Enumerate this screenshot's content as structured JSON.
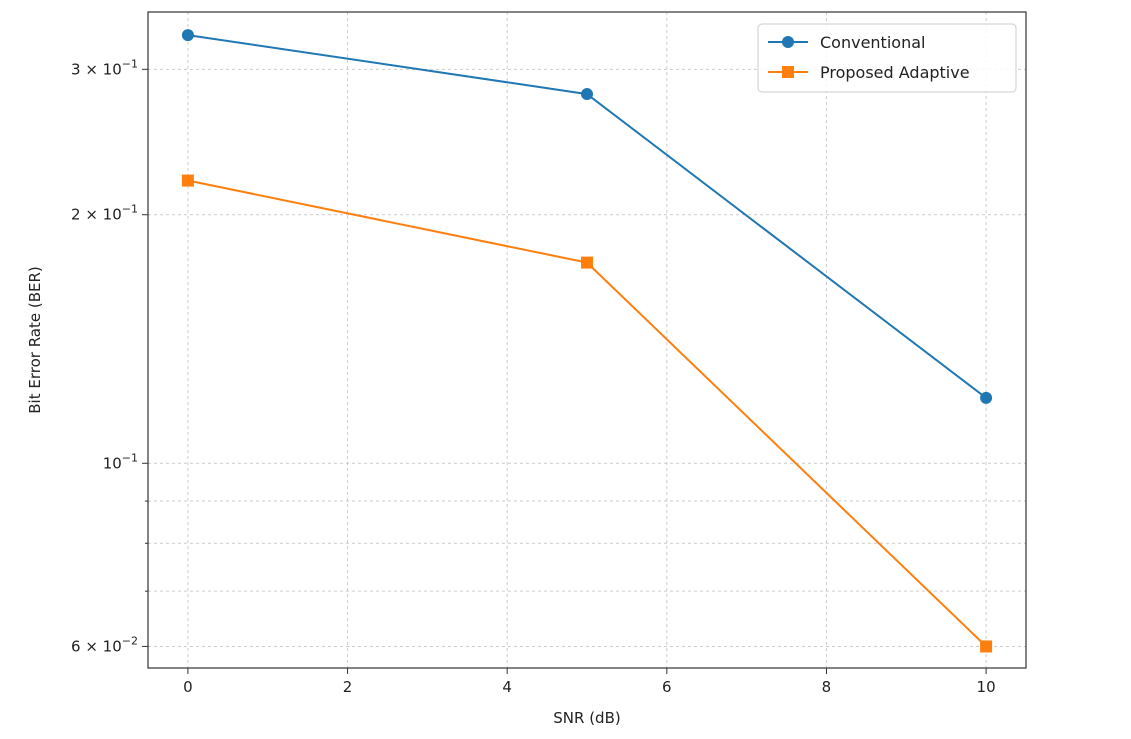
{
  "chart_data": {
    "type": "line",
    "title": "",
    "xlabel": "SNR (dB)",
    "ylabel": "Bit Error Rate (BER)",
    "xlim": [
      -0.5,
      10.5
    ],
    "ylim": [
      0.0565,
      0.352
    ],
    "yscale": "log",
    "grid": true,
    "legend_position": "top-right",
    "x": [
      0,
      5,
      10
    ],
    "series": [
      {
        "name": "Conventional",
        "values": [
          0.33,
          0.28,
          0.12
        ],
        "color": "#1f77b4",
        "marker": "circle"
      },
      {
        "name": "Proposed Adaptive",
        "values": [
          0.22,
          0.175,
          0.06
        ],
        "color": "#ff7f0e",
        "marker": "square"
      }
    ],
    "x_ticks": [
      {
        "value": 0,
        "label": "0"
      },
      {
        "value": 2,
        "label": "2"
      },
      {
        "value": 4,
        "label": "4"
      },
      {
        "value": 6,
        "label": "6"
      },
      {
        "value": 8,
        "label": "8"
      },
      {
        "value": 10,
        "label": "10"
      }
    ],
    "y_major_ticks": [
      {
        "value": 0.3,
        "mantissa": "3",
        "exponent": "−1"
      },
      {
        "value": 0.2,
        "mantissa": "2",
        "exponent": "−1"
      },
      {
        "value": 0.1,
        "mantissa": "",
        "exponent": "−1"
      },
      {
        "value": 0.06,
        "mantissa": "6",
        "exponent": "−2"
      }
    ],
    "y_minor_ticks": [
      0.09,
      0.08,
      0.07
    ]
  }
}
